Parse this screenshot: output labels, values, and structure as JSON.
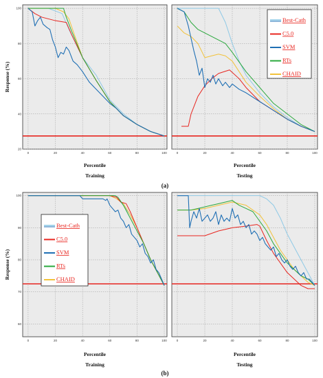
{
  "figure": {
    "part_labels": [
      "(a)",
      "(b)"
    ],
    "ylabel": "Response (%)",
    "xlabel": "Percentile"
  },
  "colors": {
    "Best-Cath": "#8ec9e6",
    "C5.0": "#e8251f",
    "SVM": "#1f6fb4",
    "RTs": "#2aa83c",
    "CHAID": "#f2c23a",
    "baseline": "#e8251f",
    "legend_text": "#e8251f",
    "plot_bg": "#ebebeb",
    "grid": "#9a9a9a"
  },
  "chart_data": [
    {
      "type": "line",
      "panel": "a-training",
      "title": "Training",
      "xlabel": "Percentile",
      "ylabel": "Response (%)",
      "xlim": [
        -4,
        102
      ],
      "ylim": [
        20,
        102
      ],
      "x_ticks": [
        0,
        20,
        40,
        60,
        80,
        100
      ],
      "y_ticks": [
        20,
        40,
        60,
        80,
        100
      ],
      "baseline": 27.5,
      "series": [
        {
          "name": "Best-Cath",
          "x": [
            0,
            15,
            25,
            30,
            40,
            50,
            60,
            70,
            80,
            90,
            100
          ],
          "y": [
            100,
            100,
            97,
            88,
            72,
            62,
            48,
            40,
            34,
            30,
            27.5
          ]
        },
        {
          "name": "C5.0",
          "x": [
            0,
            5,
            10,
            20,
            28,
            32,
            40,
            50,
            60,
            70,
            80,
            90,
            100
          ],
          "y": [
            100,
            97,
            95,
            93,
            92,
            85,
            72,
            59,
            47,
            39,
            34,
            30,
            27.5
          ]
        },
        {
          "name": "SVM",
          "x": [
            0,
            3,
            5,
            7,
            9,
            11,
            14,
            16,
            18,
            20,
            22,
            24,
            26,
            28,
            30,
            33,
            36,
            40,
            45,
            50,
            55,
            60,
            65,
            70,
            80,
            90,
            100
          ],
          "y": [
            100,
            98,
            90,
            93,
            95,
            91,
            89,
            88,
            82,
            78,
            72,
            75,
            74,
            78,
            76,
            70,
            68,
            64,
            58,
            54,
            50,
            46,
            43,
            39,
            34,
            30,
            27.5
          ]
        },
        {
          "name": "RTs",
          "x": [
            0,
            10,
            20,
            26,
            28,
            32,
            40,
            50,
            60,
            70,
            80,
            90,
            100
          ],
          "y": [
            100,
            100,
            100,
            100,
            95,
            87,
            72,
            59,
            47,
            39,
            34,
            30,
            27.5
          ]
        },
        {
          "name": "CHAID",
          "x": [
            0,
            10,
            20,
            26,
            30,
            34,
            40,
            50,
            60,
            70,
            80,
            90,
            100
          ],
          "y": [
            100,
            100,
            100,
            98,
            94,
            85,
            72,
            59,
            47,
            39,
            34,
            30,
            27.5
          ]
        }
      ]
    },
    {
      "type": "line",
      "panel": "a-testing",
      "title": "Testing",
      "xlabel": "Percentile",
      "ylabel": "",
      "xlim": [
        -4,
        102
      ],
      "ylim": [
        20,
        102
      ],
      "x_ticks": [
        0,
        20,
        40,
        60,
        80,
        100
      ],
      "y_ticks": [],
      "baseline": 27.5,
      "series": [
        {
          "name": "Best-Cath",
          "x": [
            0,
            10,
            20,
            30,
            35,
            40,
            45,
            50,
            60,
            70,
            80,
            90,
            100
          ],
          "y": [
            100,
            100,
            100,
            100,
            92,
            80,
            70,
            62,
            52,
            44,
            38,
            33,
            30
          ]
        },
        {
          "name": "C5.0",
          "x": [
            3,
            5,
            8,
            10,
            15,
            20,
            25,
            30,
            38,
            45,
            50,
            60,
            70,
            80,
            90,
            100
          ],
          "y": [
            33,
            33,
            33,
            40,
            50,
            56,
            60,
            63,
            65,
            60,
            55,
            47,
            42,
            37,
            33,
            30
          ]
        },
        {
          "name": "SVM",
          "x": [
            0,
            5,
            8,
            12,
            14,
            16,
            18,
            20,
            22,
            24,
            26,
            28,
            30,
            33,
            35,
            38,
            40,
            45,
            50,
            60,
            70,
            80,
            90,
            100
          ],
          "y": [
            100,
            98,
            90,
            76,
            70,
            62,
            66,
            55,
            60,
            58,
            62,
            57,
            60,
            56,
            58,
            55,
            57,
            54,
            52,
            47,
            42,
            37,
            33,
            30
          ]
        },
        {
          "name": "RTs",
          "x": [
            0,
            5,
            10,
            15,
            20,
            25,
            30,
            35,
            40,
            50,
            60,
            70,
            80,
            90,
            100
          ],
          "y": [
            100,
            98,
            92,
            88,
            86,
            84,
            82,
            80,
            75,
            64,
            55,
            46,
            40,
            34,
            30
          ]
        },
        {
          "name": "CHAID",
          "x": [
            0,
            5,
            10,
            15,
            20,
            25,
            30,
            35,
            40,
            45,
            50,
            60,
            70,
            80,
            90,
            100
          ],
          "y": [
            90,
            86,
            84,
            80,
            72,
            73,
            74,
            73,
            70,
            64,
            58,
            50,
            43,
            37,
            33,
            30
          ]
        }
      ]
    },
    {
      "type": "line",
      "panel": "b-training",
      "title": "Training",
      "xlabel": "Percentile",
      "ylabel": "Response (%)",
      "xlim": [
        -4,
        102
      ],
      "ylim": [
        56,
        101
      ],
      "x_ticks": [
        0,
        20,
        40,
        60,
        80,
        100
      ],
      "y_ticks": [
        60,
        70,
        80,
        90,
        100
      ],
      "baseline": 72.5,
      "series": [
        {
          "name": "Best-Cath",
          "x": [
            0,
            10,
            20,
            30,
            40,
            50,
            60,
            65,
            70,
            75,
            80,
            85,
            90,
            95,
            100
          ],
          "y": [
            100,
            100,
            100,
            100,
            100,
            100,
            100,
            99.5,
            97,
            94,
            90,
            85,
            80,
            76,
            72
          ]
        },
        {
          "name": "C5.0",
          "x": [
            0,
            10,
            20,
            30,
            40,
            50,
            60,
            65,
            68,
            72,
            75,
            80,
            85,
            90,
            95,
            100
          ],
          "y": [
            100,
            100,
            100,
            100,
            100,
            100,
            100,
            99.5,
            98,
            97.5,
            95,
            90,
            85,
            80,
            76,
            72
          ]
        },
        {
          "name": "SVM",
          "x": [
            0,
            10,
            20,
            30,
            38,
            39,
            40,
            45,
            50,
            55,
            57,
            58,
            60,
            62,
            64,
            66,
            68,
            70,
            72,
            74,
            76,
            78,
            80,
            82,
            84,
            86,
            88,
            90,
            92,
            94,
            96,
            98,
            100
          ],
          "y": [
            100,
            100,
            100,
            100,
            100,
            99.5,
            99,
            99,
            99,
            99,
            98.5,
            99,
            97,
            96,
            95,
            95.5,
            93,
            92,
            90,
            91,
            88,
            87,
            86,
            84,
            85,
            82,
            81,
            79,
            80,
            77,
            76,
            74,
            72
          ]
        },
        {
          "name": "RTs",
          "x": [
            0,
            10,
            20,
            30,
            40,
            50,
            60,
            64,
            66,
            70,
            75,
            80,
            85,
            90,
            95,
            100
          ],
          "y": [
            100,
            100,
            100,
            100,
            100,
            100,
            100,
            100,
            99.5,
            97,
            93,
            89,
            85,
            80,
            76,
            72
          ]
        },
        {
          "name": "CHAID",
          "x": [
            0,
            10,
            20,
            30,
            40,
            50,
            60,
            65,
            70,
            75,
            80,
            85,
            90,
            95,
            100
          ],
          "y": [
            100,
            100,
            100,
            100,
            100,
            100,
            100,
            99,
            97.5,
            94,
            90,
            85,
            80,
            76,
            72
          ]
        }
      ]
    },
    {
      "type": "line",
      "panel": "b-testing",
      "title": "Testing",
      "xlabel": "Percentile",
      "ylabel": "",
      "xlim": [
        -4,
        102
      ],
      "ylim": [
        56,
        101
      ],
      "x_ticks": [
        0,
        20,
        40,
        60,
        80,
        100
      ],
      "y_ticks": [],
      "baseline": 72.5,
      "series": [
        {
          "name": "Best-Cath",
          "x": [
            0,
            10,
            20,
            30,
            40,
            50,
            60,
            65,
            70,
            75,
            80,
            85,
            90,
            95,
            100
          ],
          "y": [
            100,
            100,
            100,
            100,
            100,
            100,
            100,
            99,
            97,
            93,
            88,
            84,
            80,
            76,
            72
          ]
        },
        {
          "name": "C5.0",
          "x": [
            0,
            10,
            20,
            30,
            40,
            50,
            58,
            60,
            65,
            70,
            75,
            80,
            85,
            90,
            95,
            100
          ],
          "y": [
            87.5,
            87.5,
            87.5,
            89,
            90,
            90.5,
            91,
            90.5,
            86,
            82,
            79,
            76,
            74,
            72,
            71,
            71
          ]
        },
        {
          "name": "SVM",
          "x": [
            0,
            5,
            8,
            9,
            10,
            12,
            14,
            16,
            18,
            20,
            22,
            24,
            26,
            28,
            30,
            32,
            34,
            36,
            38,
            40,
            42,
            44,
            46,
            48,
            50,
            52,
            54,
            56,
            58,
            60,
            62,
            64,
            66,
            68,
            70,
            72,
            74,
            76,
            78,
            80,
            82,
            84,
            86,
            88,
            90,
            92,
            94,
            96,
            98,
            100
          ],
          "y": [
            100,
            100,
            100,
            90,
            92,
            95,
            93,
            96,
            92,
            93,
            94,
            92,
            93,
            95,
            91,
            94,
            92,
            93,
            92,
            96,
            93,
            94,
            91,
            92,
            90,
            91,
            88,
            89,
            88,
            86,
            87,
            85,
            84,
            83,
            84,
            81,
            82,
            80,
            79,
            80,
            78,
            77,
            78,
            76,
            75,
            76,
            74,
            74,
            73,
            72
          ]
        },
        {
          "name": "RTs",
          "x": [
            0,
            5,
            10,
            15,
            20,
            25,
            30,
            35,
            40,
            45,
            50,
            55,
            60,
            65,
            70,
            75,
            80,
            85,
            90,
            95,
            100
          ],
          "y": [
            95.5,
            95.5,
            95.5,
            96,
            96.5,
            97,
            97.5,
            98,
            98.5,
            97,
            96,
            95,
            92,
            89,
            85,
            82,
            79,
            77,
            75,
            74,
            72
          ]
        },
        {
          "name": "CHAID",
          "x": [
            0,
            10,
            20,
            30,
            40,
            50,
            60,
            65,
            70,
            75,
            80,
            85,
            90,
            95,
            100
          ],
          "y": [
            95.5,
            95.5,
            96,
            97,
            98,
            97,
            94,
            91,
            87,
            83,
            80,
            77,
            75,
            73,
            72
          ]
        }
      ]
    }
  ],
  "legend": {
    "items": [
      {
        "key": "Best-Cath",
        "label": "Best-Cath"
      },
      {
        "key": "C5.0",
        "label": "C5.0"
      },
      {
        "key": "SVM",
        "label": "SVM"
      },
      {
        "key": "RTs",
        "label": "RTs"
      },
      {
        "key": "CHAID",
        "label": "CHAID"
      }
    ]
  }
}
